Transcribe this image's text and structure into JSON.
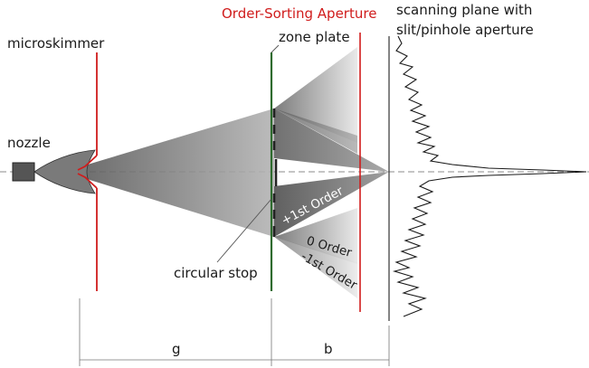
{
  "labels": {
    "nozzle": "nozzle",
    "microskimmer": "microskimmer",
    "zone_plate": "zone plate",
    "osa": "Order-Sorting Aperture",
    "scanning_plane_line1": "scanning plane with",
    "scanning_plane_line2": "slit/pinhole aperture",
    "circular_stop": "circular stop",
    "first_order_plus": "+1st Order",
    "zero_order": "0 Order",
    "first_order_minus": "-1st Order",
    "dim_g": "g",
    "dim_b": "b"
  },
  "colors": {
    "osa_red": "#d01c1c",
    "microskimmer_red": "#d01c1c",
    "zone_plate_green": "#2e6b2e",
    "beam_gray": "#8a8a8a",
    "nozzle_fill": "#555555",
    "profile_line": "#1a1a1a"
  }
}
